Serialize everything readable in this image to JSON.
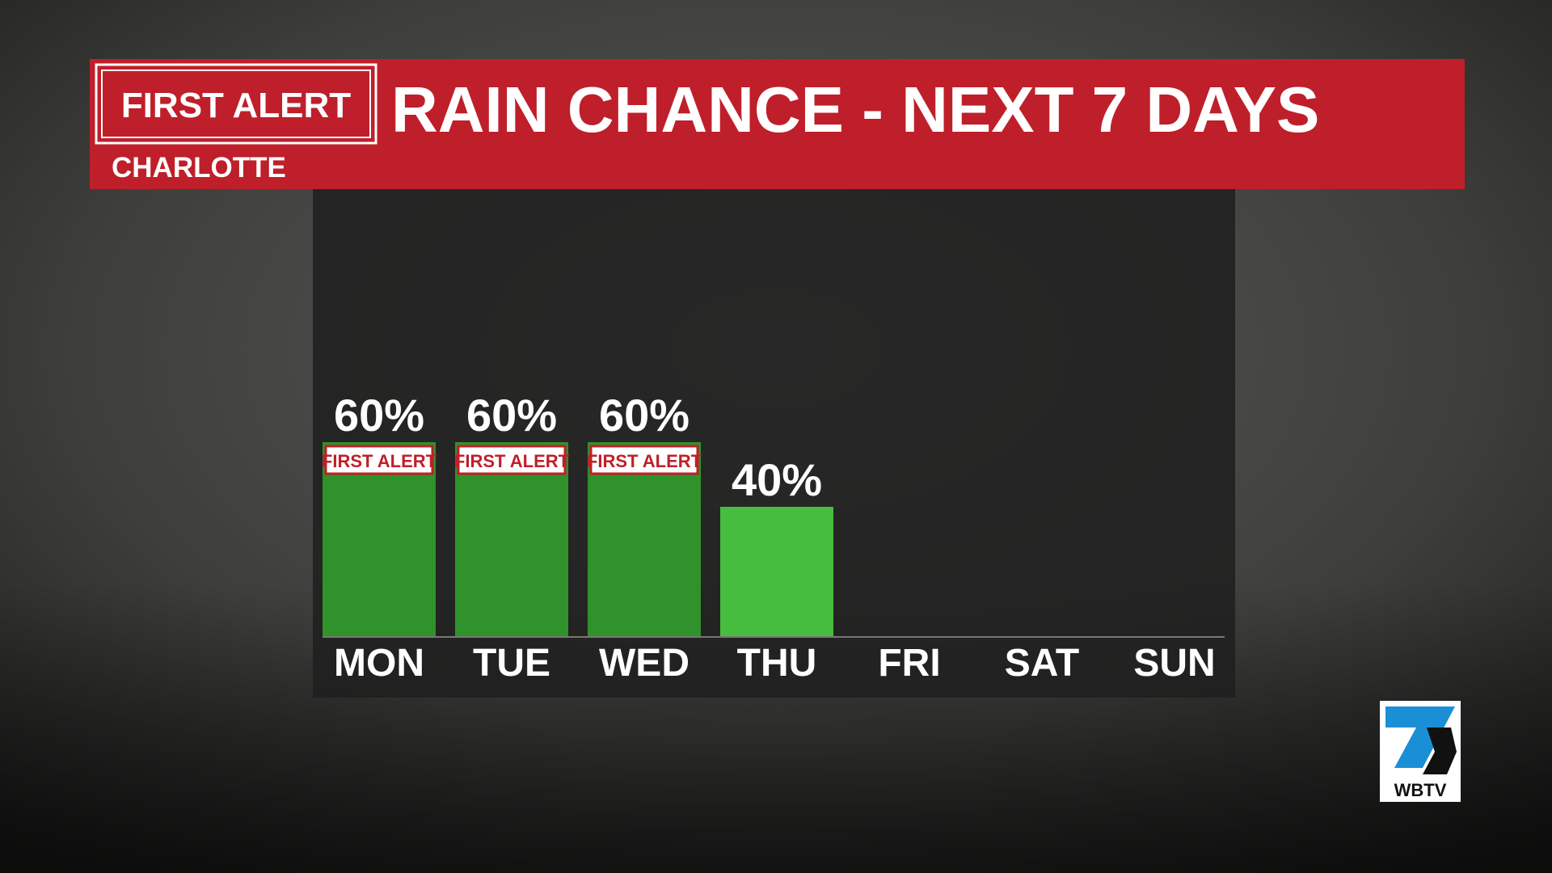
{
  "header": {
    "badge": "FIRST ALERT",
    "title": "RAIN CHANCE - NEXT 7 DAYS",
    "location": "CHARLOTTE"
  },
  "chart_data": {
    "type": "bar",
    "categories": [
      "MON",
      "TUE",
      "WED",
      "THU",
      "FRI",
      "SAT",
      "SUN"
    ],
    "values": [
      60,
      60,
      60,
      40,
      null,
      null,
      null
    ],
    "value_labels": [
      "60%",
      "60%",
      "60%",
      "40%",
      null,
      null,
      null
    ],
    "badges": [
      "FIRST ALERT",
      "FIRST ALERT",
      "FIRST ALERT",
      null,
      null,
      null,
      null
    ],
    "colors": [
      "#2f922b",
      "#2f922b",
      "#2f922b",
      "#46bd3e",
      null,
      null,
      null
    ]
  },
  "logo": {
    "text": "WBTV"
  }
}
